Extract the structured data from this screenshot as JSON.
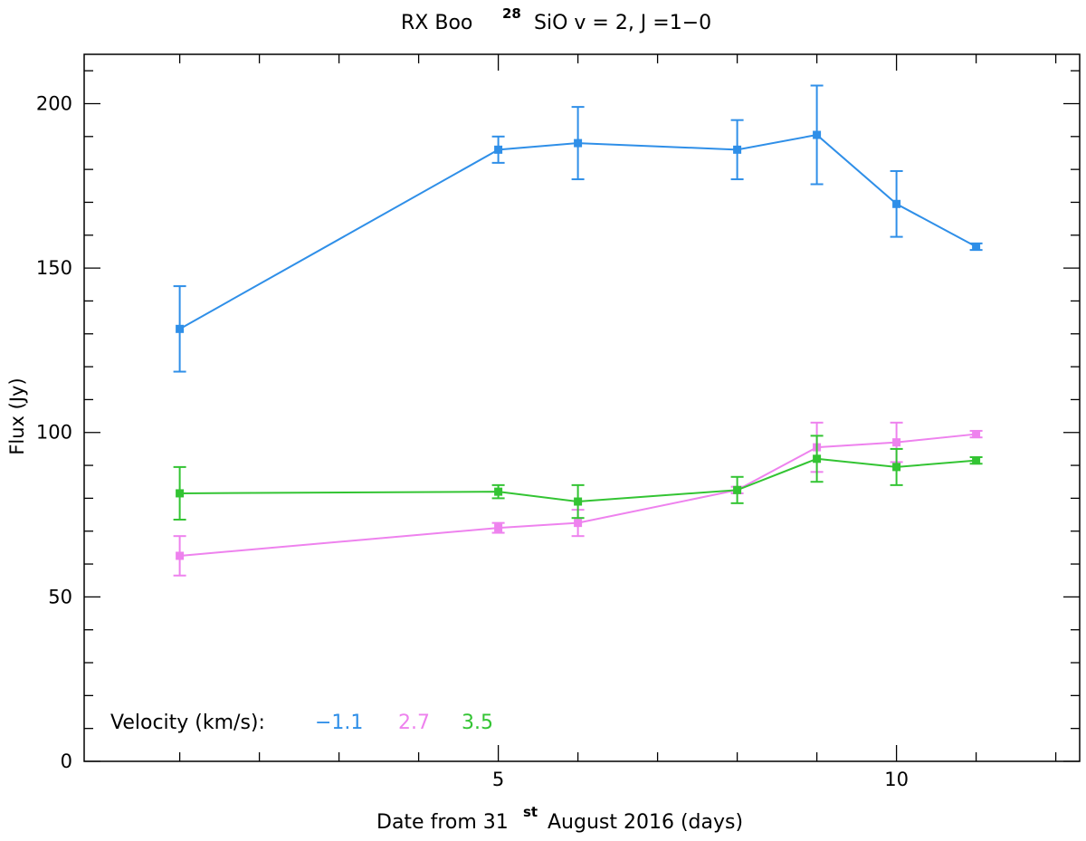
{
  "chart_data": {
    "type": "line",
    "title_parts": {
      "star": "RX Boo",
      "isotope": "28",
      "molecule": "SiO v = 2, J =1−0"
    },
    "xlabel": {
      "prefix": "Date from 31",
      "superscript": "st",
      "suffix": " August 2016 (days)"
    },
    "ylabel": "Flux (Jy)",
    "xlim": [
      -0.2,
      12.3
    ],
    "ylim": [
      0,
      215
    ],
    "x_major_ticks": [
      5,
      10
    ],
    "x_minor_ticks": [
      1,
      2,
      3,
      4,
      6,
      7,
      8,
      9,
      11,
      12
    ],
    "y_major_ticks": [
      0,
      50,
      100,
      150,
      200
    ],
    "y_minor_ticks": [
      10,
      20,
      30,
      40,
      60,
      70,
      80,
      90,
      110,
      120,
      130,
      140,
      160,
      170,
      180,
      190,
      210
    ],
    "legend_label": "Velocity (km/s):",
    "series": [
      {
        "name": "−1.1",
        "color": "#2f8fe8",
        "x": [
          1,
          5,
          6,
          8,
          9,
          10,
          11
        ],
        "y": [
          131.5,
          186,
          188,
          186,
          190.5,
          169.5,
          156.5
        ],
        "err": [
          13,
          4,
          11,
          9,
          15,
          10,
          1
        ]
      },
      {
        "name": "2.7",
        "color": "#ee82ee",
        "x": [
          1,
          5,
          6,
          8,
          9,
          10,
          11
        ],
        "y": [
          62.5,
          71,
          72.5,
          82.5,
          95.5,
          97,
          99.5
        ],
        "err": [
          6,
          1.5,
          4,
          1,
          7.5,
          6,
          1
        ]
      },
      {
        "name": "3.5",
        "color": "#33c433",
        "x": [
          1,
          5,
          6,
          8,
          9,
          10,
          11
        ],
        "y": [
          81.5,
          82,
          79,
          82.5,
          92,
          89.5,
          91.5
        ],
        "err": [
          8,
          2,
          5,
          4,
          7,
          5.5,
          1
        ]
      }
    ]
  }
}
